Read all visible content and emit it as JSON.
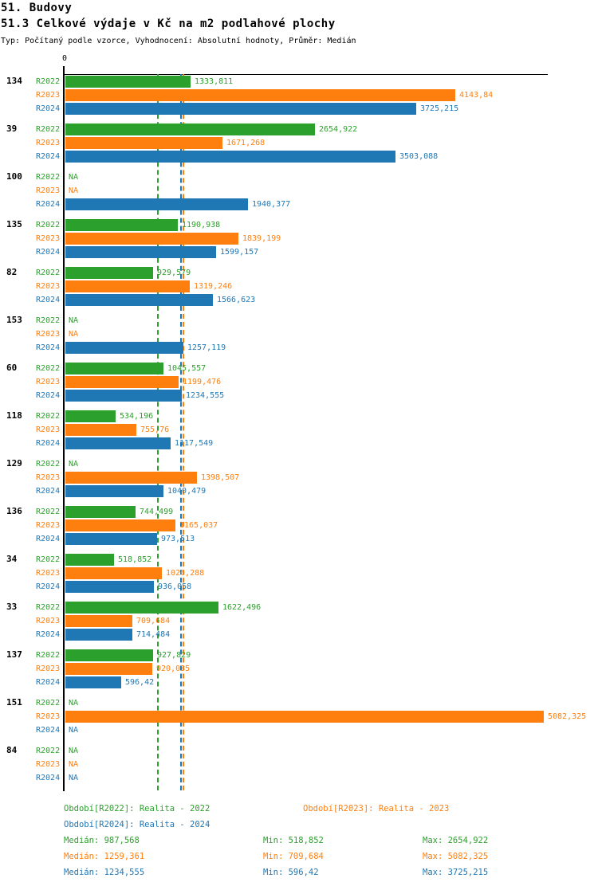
{
  "header": {
    "title": "51. Budovy",
    "subtitle": "51.3 Celkové výdaje v Kč na m2 podlahové plochy",
    "meta": "Typ: Počítaný podle vzorce, Vyhodnocení: Absolutní hodnoty, Průměr: Medián"
  },
  "colors": {
    "r2022": "#2ca02c",
    "r2023": "#ff7f0e",
    "r2024": "#1f77b4",
    "axis": "#000000"
  },
  "chart_data": {
    "type": "bar",
    "orientation": "horizontal",
    "title": "51.3 Celkové výdaje v Kč na m2 podlahové plochy",
    "x_axis": {
      "origin_label": "0",
      "min": 0,
      "grid": false
    },
    "na_text": "NA",
    "series_labels": [
      "R2022",
      "R2023",
      "R2024"
    ],
    "groups": [
      {
        "label": "134",
        "values": [
          1333.811,
          4143.84,
          3725.215
        ],
        "display": [
          "1333,811",
          "4143,84",
          "3725,215"
        ]
      },
      {
        "label": "39",
        "values": [
          2654.922,
          1671.268,
          3503.088
        ],
        "display": [
          "2654,922",
          "1671,268",
          "3503,088"
        ]
      },
      {
        "label": "100",
        "values": [
          null,
          null,
          1940.377
        ],
        "display": [
          "NA",
          "NA",
          "1940,377"
        ]
      },
      {
        "label": "135",
        "values": [
          1190.938,
          1839.199,
          1599.157
        ],
        "display": [
          "1190,938",
          "1839,199",
          "1599,157"
        ]
      },
      {
        "label": "82",
        "values": [
          929.579,
          1319.246,
          1566.623
        ],
        "display": [
          "929,579",
          "1319,246",
          "1566,623"
        ]
      },
      {
        "label": "153",
        "values": [
          null,
          null,
          1257.119
        ],
        "display": [
          "NA",
          "NA",
          "1257,119"
        ]
      },
      {
        "label": "60",
        "values": [
          1045.557,
          1199.476,
          1234.555
        ],
        "display": [
          "1045,557",
          "1199,476",
          "1234,555"
        ]
      },
      {
        "label": "118",
        "values": [
          534.196,
          755.76,
          1117.549
        ],
        "display": [
          "534,196",
          "755,76",
          "1117,549"
        ]
      },
      {
        "label": "129",
        "values": [
          null,
          1398.507,
          1040.479
        ],
        "display": [
          "NA",
          "1398,507",
          "1040,479"
        ]
      },
      {
        "label": "136",
        "values": [
          744.499,
          1165.037,
          973.513
        ],
        "display": [
          "744,499",
          "1165,037",
          "973,513"
        ]
      },
      {
        "label": "34",
        "values": [
          518.852,
          1026.288,
          936.058
        ],
        "display": [
          "518,852",
          "1026,288",
          "936,058"
        ]
      },
      {
        "label": "33",
        "values": [
          1622.496,
          709.684,
          714.484
        ],
        "display": [
          "1622,496",
          "709,684",
          "714,484"
        ]
      },
      {
        "label": "137",
        "values": [
          927.829,
          920.035,
          596.42
        ],
        "display": [
          "927,829",
          "920,035",
          "596,42"
        ]
      },
      {
        "label": "151",
        "values": [
          null,
          5082.325,
          null
        ],
        "display": [
          "NA",
          "5082,325",
          "NA"
        ]
      },
      {
        "label": "84",
        "values": [
          null,
          null,
          null
        ],
        "display": [
          "NA",
          "NA",
          "NA"
        ]
      }
    ],
    "medians": [
      987.568,
      1259.361,
      1234.555
    ],
    "mins": [
      518.852,
      709.684,
      596.42
    ],
    "maxs": [
      2654.922,
      5082.325,
      3725.215
    ],
    "legend_position": "bottom"
  },
  "footer": {
    "legend": [
      {
        "label": "Období[R2022]: Realita - 2022"
      },
      {
        "label": "Období[R2023]: Realita - 2023"
      },
      {
        "label": "Období[R2024]: Realita - 2024"
      }
    ],
    "stats": [
      {
        "median": "Medián: 987,568",
        "min": "Min: 518,852",
        "max": "Max: 2654,922"
      },
      {
        "median": "Medián: 1259,361",
        "min": "Min: 709,684",
        "max": "Max: 5082,325"
      },
      {
        "median": "Medián: 1234,555",
        "min": "Min: 596,42",
        "max": "Max: 3725,215"
      }
    ]
  }
}
